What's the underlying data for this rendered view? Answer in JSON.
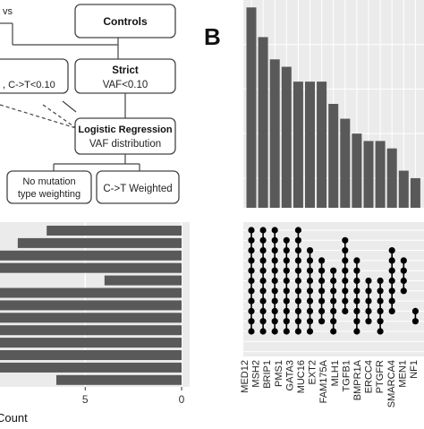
{
  "panel_b_label": "B",
  "flowchart": {
    "top_fragment": "vs",
    "controls": "Controls",
    "left_fragment": ", C->T<0.10",
    "strict_title": "Strict",
    "strict_sub": "VAF<0.10",
    "logreg_title": "Logistic Regression",
    "logreg_sub": "VAF distribution",
    "no_mut_line1": "No mutation",
    "no_mut_line2": "type weighting",
    "ct_weighted": "C->T Weighted"
  },
  "colors": {
    "bar": "#595959",
    "panel_bg": "#ebebeb",
    "grid": "#ffffff",
    "dot_on": "#000000",
    "dot_off": "#d9d9d9",
    "box_stroke": "#444444"
  },
  "chart_data": [
    {
      "type": "bar",
      "description_role": "set-size bars (horizontal, reversed axis)",
      "xlabel": "Count",
      "xticks": [
        5,
        0
      ],
      "xlim": [
        0,
        11
      ],
      "values": [
        7,
        8.5,
        11,
        11,
        4,
        11,
        11,
        11,
        11,
        11,
        11,
        11,
        6.5
      ]
    },
    {
      "type": "bar",
      "description_role": "intersection size bars",
      "values": [
        13.5,
        11.5,
        10,
        9.5,
        8.5,
        8.5,
        8.5,
        7,
        6,
        5,
        4.5,
        4.5,
        4,
        2.5,
        2
      ],
      "ylim": [
        0,
        14
      ]
    },
    {
      "type": "scatter",
      "description_role": "intersection matrix",
      "sets": [
        "MED12",
        "MSH2",
        "BRIP1",
        "PMS1",
        "GATA3",
        "MUC16",
        "EXT2",
        "FAM175A",
        "MLH1",
        "TGFB1",
        "BMPR1A",
        "ERCC4",
        "PTGFR",
        "SMARCA4",
        "MEN1",
        "NF1"
      ],
      "num_rows": 13,
      "columns": [
        {
          "rows": [
            0,
            1,
            2,
            3,
            4,
            5,
            6,
            7,
            8,
            9,
            10
          ]
        },
        {
          "rows": [
            0,
            1,
            2,
            3,
            4,
            5,
            6,
            7,
            8,
            9,
            10
          ]
        },
        {
          "rows": [
            0,
            1,
            2,
            3,
            4,
            5,
            6,
            7,
            8,
            9,
            10
          ]
        },
        {
          "rows": [
            1,
            2,
            3,
            4,
            5,
            6,
            7,
            8,
            9,
            10
          ]
        },
        {
          "rows": [
            0,
            1,
            2,
            3,
            4,
            5,
            6,
            7,
            8,
            9,
            10
          ]
        },
        {
          "rows": [
            2,
            3,
            4,
            5,
            6,
            7,
            8,
            9,
            10
          ]
        },
        {
          "rows": [
            3,
            4,
            5,
            6,
            7,
            8,
            9
          ]
        },
        {
          "rows": [
            4,
            5,
            6,
            7,
            8,
            9,
            10
          ]
        },
        {
          "rows": [
            1,
            2,
            3,
            4,
            5,
            6,
            7,
            8
          ]
        },
        {
          "rows": [
            3,
            4,
            5,
            6,
            7,
            8,
            9,
            10
          ]
        },
        {
          "rows": [
            5,
            6,
            7,
            8,
            9
          ]
        },
        {
          "rows": [
            5,
            6,
            7,
            8,
            9,
            10
          ]
        },
        {
          "rows": [
            2,
            3,
            4,
            5,
            6,
            7,
            8
          ]
        },
        {
          "rows": [
            3,
            4,
            5,
            6
          ]
        },
        {
          "rows": [
            8,
            9
          ]
        }
      ]
    }
  ]
}
